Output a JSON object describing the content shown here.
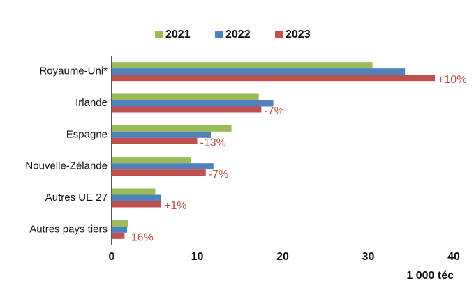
{
  "chart_data": {
    "type": "bar",
    "orientation": "horizontal",
    "categories": [
      "Royaume-Uni*",
      "Irlande",
      "Espagne",
      "Nouvelle-Zélande",
      "Autres UE 27",
      "Autres pays tiers"
    ],
    "series": [
      {
        "name": "2021",
        "color": "#9bbb59",
        "values": [
          30.5,
          17.2,
          14.0,
          9.3,
          5.1,
          1.9
        ]
      },
      {
        "name": "2022",
        "color": "#4f81bd",
        "values": [
          34.3,
          18.9,
          11.6,
          11.9,
          5.8,
          1.8
        ]
      },
      {
        "name": "2023",
        "color": "#c0504d",
        "values": [
          37.8,
          17.5,
          10.0,
          11.0,
          5.8,
          1.5
        ]
      }
    ],
    "annotations": [
      "+10%",
      "-7%",
      "-13%",
      "-7%",
      "+1%",
      "-16%"
    ],
    "xlabel": "1 000 téc",
    "xlim": [
      0,
      40
    ],
    "xticks": [
      0,
      10,
      20,
      30,
      40
    ],
    "legend": "top",
    "grid": false
  }
}
